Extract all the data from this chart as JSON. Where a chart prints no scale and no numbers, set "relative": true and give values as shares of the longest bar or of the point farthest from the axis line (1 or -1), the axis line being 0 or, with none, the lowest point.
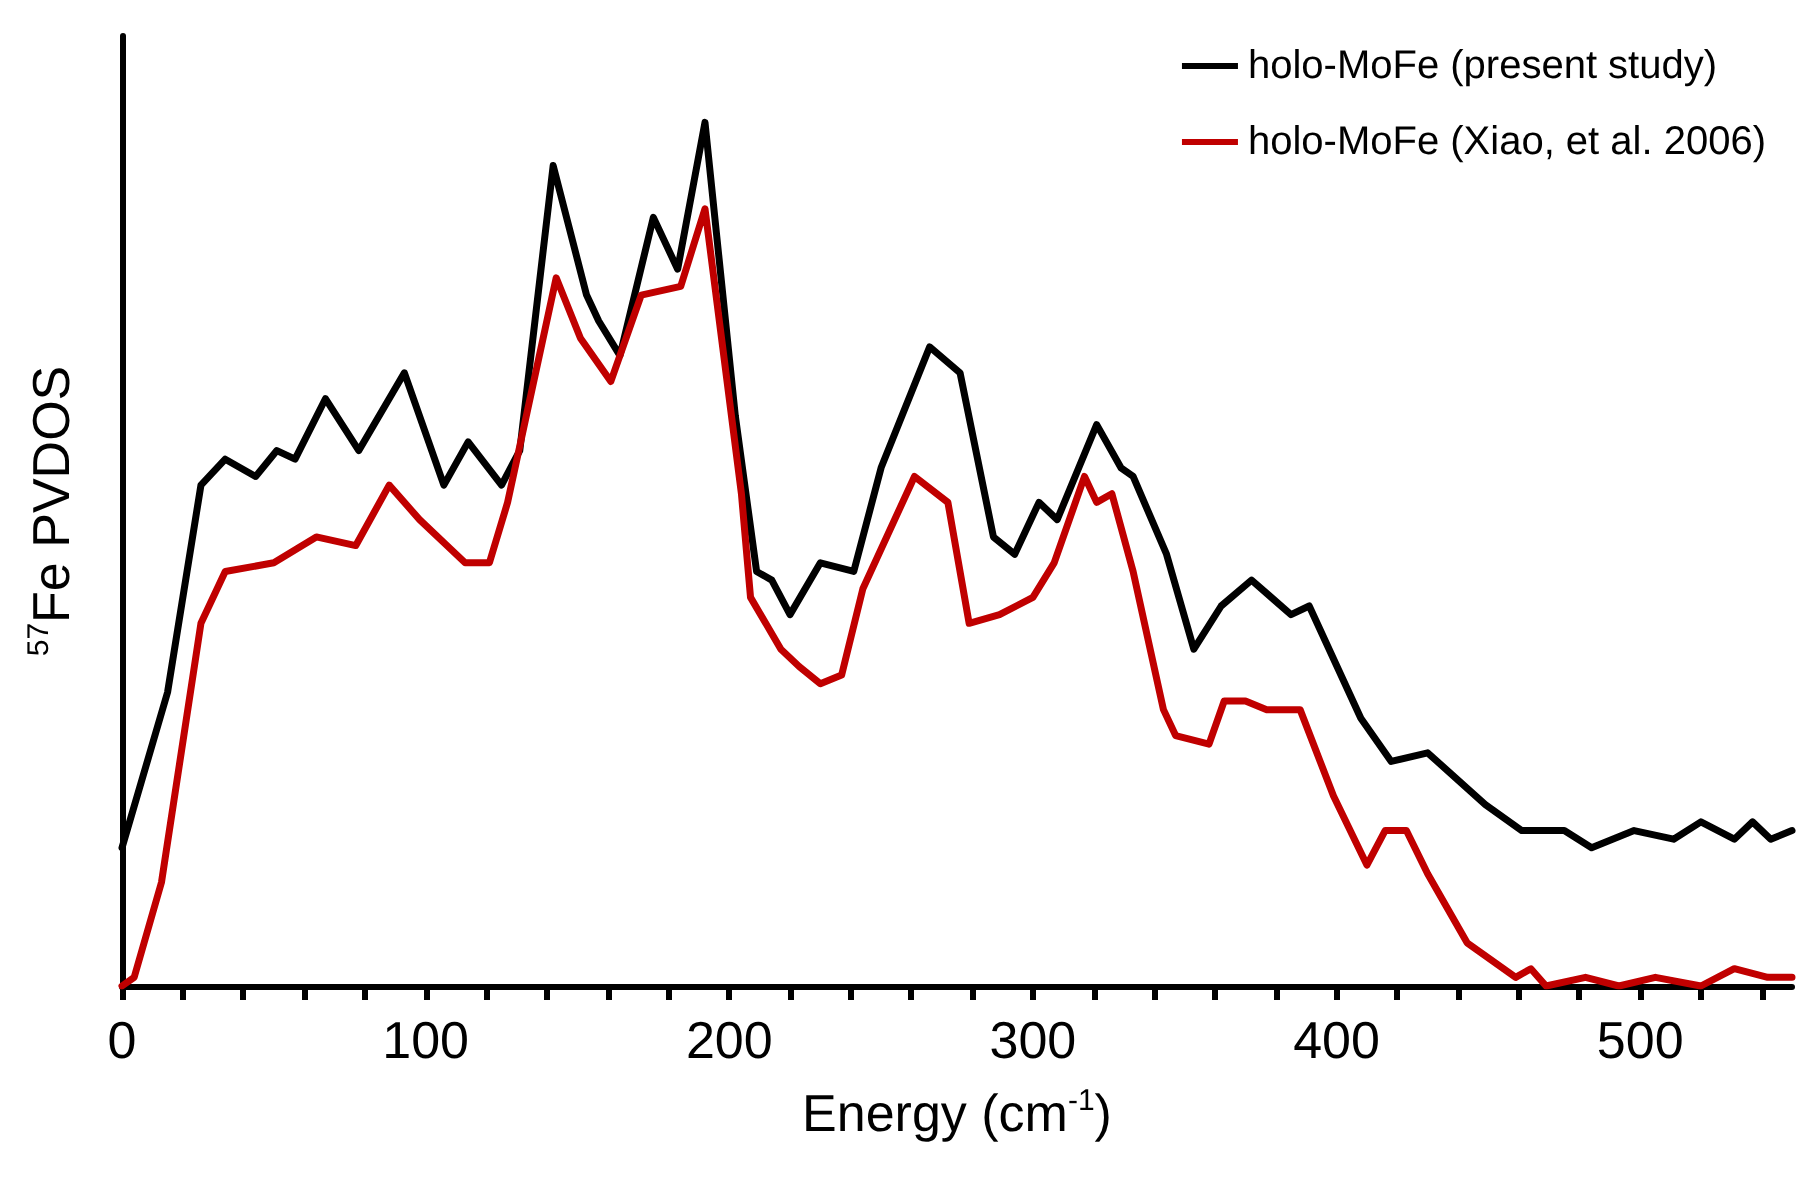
{
  "chart_data": {
    "type": "line",
    "relative": true,
    "xlabel": "Energy (cm$^{-1}$)",
    "ylabel": "$^{57}$Fe PVDOS",
    "xlim": [
      0,
      550
    ],
    "xticks": [
      0,
      {
        "value": 20,
        "label": null
      },
      {
        "value": 40,
        "label": null
      },
      {
        "value": 60,
        "label": null
      },
      {
        "value": 80,
        "label": null
      },
      100,
      {
        "value": 120,
        "label": null
      },
      {
        "value": 140,
        "label": null
      },
      {
        "value": 160,
        "label": null
      },
      {
        "value": 180,
        "label": null
      },
      200,
      {
        "value": 220,
        "label": null
      },
      {
        "value": 240,
        "label": null
      },
      {
        "value": 260,
        "label": null
      },
      {
        "value": 280,
        "label": null
      },
      300,
      {
        "value": 320,
        "label": null
      },
      {
        "value": 340,
        "label": null
      },
      {
        "value": 360,
        "label": null
      },
      {
        "value": 380,
        "label": null
      },
      400,
      {
        "value": 420,
        "label": null
      },
      {
        "value": 440,
        "label": null
      },
      {
        "value": 460,
        "label": null
      },
      {
        "value": 480,
        "label": null
      },
      500,
      {
        "value": 520,
        "label": null
      },
      {
        "value": 540,
        "label": null
      }
    ],
    "legend": "top right",
    "grid": false,
    "marker": "none",
    "line_style": "solid",
    "series": [
      {
        "name": "holo-MoFe (present study)",
        "color": "#000000",
        "x": [
          0,
          15,
          26,
          34,
          44,
          51,
          57,
          67,
          78,
          93,
          106,
          114,
          125,
          131,
          142,
          153,
          157,
          164,
          175,
          183,
          192,
          202,
          209,
          214,
          220,
          230,
          241,
          250,
          266,
          276,
          287,
          294,
          302,
          308,
          321,
          329,
          333,
          344,
          353,
          362,
          372,
          385,
          391,
          408,
          418,
          430,
          449,
          461,
          475,
          484,
          498,
          511,
          520,
          531,
          537,
          543,
          550
        ],
        "values": [
          0.16,
          0.34,
          0.58,
          0.61,
          0.59,
          0.62,
          0.61,
          0.68,
          0.62,
          0.71,
          0.58,
          0.63,
          0.58,
          0.62,
          0.95,
          0.8,
          0.77,
          0.73,
          0.89,
          0.83,
          1.0,
          0.66,
          0.48,
          0.47,
          0.43,
          0.49,
          0.48,
          0.6,
          0.74,
          0.71,
          0.52,
          0.5,
          0.56,
          0.54,
          0.65,
          0.6,
          0.59,
          0.5,
          0.39,
          0.44,
          0.47,
          0.43,
          0.44,
          0.31,
          0.26,
          0.27,
          0.21,
          0.18,
          0.18,
          0.16,
          0.18,
          0.17,
          0.19,
          0.17,
          0.19,
          0.17,
          0.18
        ]
      },
      {
        "name": "holo-MoFe (Xiao, et al. 2006)",
        "color": "#c00000",
        "x": [
          0,
          4,
          13,
          26,
          34,
          50,
          64,
          77,
          88,
          98,
          107,
          113,
          121,
          127,
          143,
          151,
          161,
          171,
          184,
          192,
          204,
          207,
          217,
          223,
          230,
          237,
          244,
          261,
          272,
          279,
          289,
          300,
          307,
          317,
          321,
          326,
          333,
          343,
          347,
          358,
          363,
          370,
          377,
          388,
          399,
          410,
          416,
          423,
          430,
          443,
          459,
          464,
          469,
          482,
          493,
          505,
          520,
          531,
          542,
          550
        ],
        "values": [
          0,
          0.01,
          0.12,
          0.42,
          0.48,
          0.49,
          0.52,
          0.51,
          0.58,
          0.54,
          0.51,
          0.49,
          0.49,
          0.56,
          0.82,
          0.75,
          0.7,
          0.8,
          0.81,
          0.9,
          0.57,
          0.45,
          0.39,
          0.37,
          0.35,
          0.36,
          0.46,
          0.59,
          0.56,
          0.42,
          0.43,
          0.45,
          0.49,
          0.59,
          0.56,
          0.57,
          0.48,
          0.32,
          0.29,
          0.28,
          0.33,
          0.33,
          0.32,
          0.32,
          0.22,
          0.14,
          0.18,
          0.18,
          0.13,
          0.05,
          0.01,
          0.02,
          0,
          0.01,
          0,
          0.01,
          0,
          0.02,
          0.01,
          0.01
        ]
      }
    ]
  }
}
